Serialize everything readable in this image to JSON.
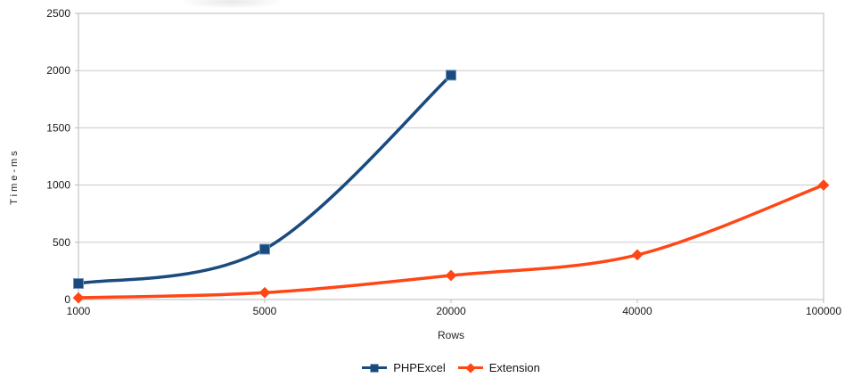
{
  "chart_data": {
    "type": "line",
    "smooth": true,
    "title": "",
    "xlabel": "Rows",
    "ylabel": "Time-ms",
    "categories": [
      "1000",
      "5000",
      "20000",
      "40000",
      "100000"
    ],
    "series": [
      {
        "name": "PHPExcel",
        "color": "#1a4b7e",
        "marker": "square",
        "marker_edge": "#6c93bd",
        "values": [
          140,
          440,
          1960,
          null,
          null
        ]
      },
      {
        "name": "Extension",
        "color": "#ff4716",
        "marker": "diamond",
        "marker_edge": "#ff6a3c",
        "values": [
          15,
          60,
          210,
          390,
          1000
        ]
      }
    ],
    "ylim": [
      0,
      2500
    ],
    "ytick_step": 500,
    "yticks": [
      "0",
      "500",
      "1000",
      "1500",
      "2000",
      "2500"
    ],
    "grid": "horizontal",
    "grid_color": "#c9c9c9",
    "frame_color": "#b9b9b9",
    "text_color": "#1a1a1a",
    "legend_position": "bottom"
  }
}
